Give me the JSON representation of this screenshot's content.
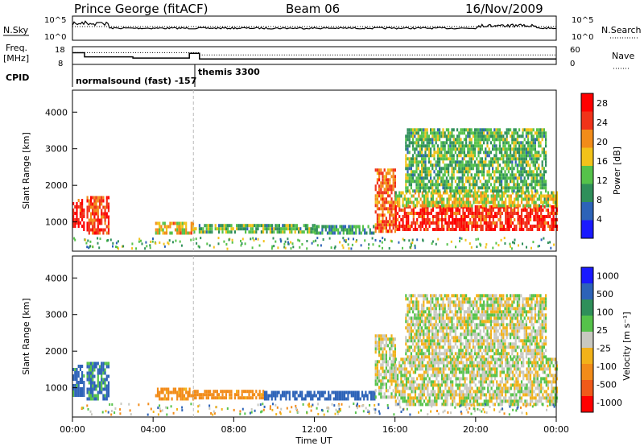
{
  "header": {
    "station": "Prince George (fitACF)",
    "beam": "Beam 06",
    "date": "16/Nov/2009"
  },
  "status_panel": {
    "left_label_top": "N.Sky",
    "left_label_freq_1": "Freq.",
    "left_label_freq_2": "[MHz]",
    "left_label_cpid": "CPID",
    "right_label_top": "N.Search",
    "right_label_mid": "Nave",
    "nsky_ticks": [
      "10^5",
      "10^0"
    ],
    "nsearch_ticks": [
      "10^5",
      "10^0"
    ],
    "freq_ticks": [
      18,
      8
    ],
    "nave_ticks": [
      60,
      0
    ],
    "cpid_labels": [
      "normalsound (fast) -157",
      "themis 3300"
    ],
    "freq_mhz": {
      "t": [
        0,
        0.6,
        0.6,
        3.0,
        3.0,
        5.8,
        5.8,
        6.3,
        6.3,
        24
      ],
      "v": [
        15.5,
        15.5,
        13.2,
        13.2,
        12.5,
        12.5,
        15.2,
        15.2,
        12.0,
        12.0
      ]
    },
    "nave_dotted_level": 32,
    "nave_dotted_level_early": 40
  },
  "chart_data": [
    {
      "type": "heatmap",
      "name": "power",
      "ylabel": "Slant Range [km]",
      "xlabel": "",
      "xlim": [
        0,
        24
      ],
      "ylim": [
        200,
        4600
      ],
      "yticks": [
        1000,
        2000,
        3000,
        4000
      ],
      "colorbar_label": "Power [dB]",
      "colorbar_ticks": [
        4,
        8,
        12,
        16,
        20,
        24,
        28
      ],
      "colorbar_range": [
        0,
        30
      ],
      "colors": [
        "#1a1aff",
        "#2d63b8",
        "#2f8f5a",
        "#55c24a",
        "#f2c21a",
        "#f28c1a",
        "#f0331a",
        "#ff0000"
      ],
      "regions": [
        {
          "t0": 0.0,
          "t1": 0.55,
          "r0": 750,
          "r1": 1600,
          "level": 26
        },
        {
          "t0": 0.7,
          "t1": 1.8,
          "r0": 650,
          "r1": 1650,
          "level": 24
        },
        {
          "t0": 4.1,
          "t1": 6.0,
          "r0": 650,
          "r1": 1000,
          "level": 18
        },
        {
          "t0": 6.0,
          "t1": 12.0,
          "r0": 680,
          "r1": 900,
          "level": 12
        },
        {
          "t0": 12.0,
          "t1": 15.0,
          "r0": 650,
          "r1": 870,
          "level": 10
        },
        {
          "t0": 15.0,
          "t1": 16.0,
          "r0": 700,
          "r1": 2400,
          "level": 22
        },
        {
          "t0": 16.0,
          "t1": 24.0,
          "r0": 750,
          "r1": 1400,
          "level": 26
        },
        {
          "t0": 16.0,
          "t1": 24.0,
          "r0": 1400,
          "r1": 1800,
          "level": 16
        },
        {
          "t0": 16.5,
          "t1": 23.5,
          "r0": 1800,
          "r1": 3500,
          "level": 12
        }
      ]
    },
    {
      "type": "heatmap",
      "name": "velocity",
      "ylabel": "Slant Range [km]",
      "xlabel": "Time UT",
      "xlim": [
        0,
        24
      ],
      "ylim": [
        200,
        4600
      ],
      "yticks": [
        1000,
        2000,
        3000,
        4000
      ],
      "xticks": [
        "00:00",
        "04:00",
        "08:00",
        "12:00",
        "16:00",
        "20:00",
        "00:00"
      ],
      "colorbar_label": "Velocity [m s⁻¹]",
      "colorbar_ticks": [
        1000,
        500,
        100,
        25,
        -25,
        -100,
        -500,
        -1000
      ],
      "colors": [
        "#1a1aff",
        "#2d63b8",
        "#2f8f5a",
        "#55c24a",
        "#c8c8c0",
        "#f2b21a",
        "#f28c1a",
        "#f05a1a",
        "#ff0000"
      ],
      "regions": [
        {
          "t0": 0.0,
          "t1": 0.55,
          "r0": 750,
          "r1": 1600,
          "vel": 150
        },
        {
          "t0": 0.7,
          "t1": 1.8,
          "r0": 650,
          "r1": 1650,
          "vel": 120
        },
        {
          "t0": 4.1,
          "t1": 6.0,
          "r0": 650,
          "r1": 1000,
          "vel": -150
        },
        {
          "t0": 6.0,
          "t1": 9.5,
          "r0": 680,
          "r1": 900,
          "vel": -150
        },
        {
          "t0": 9.5,
          "t1": 15.0,
          "r0": 650,
          "r1": 870,
          "vel": 200
        },
        {
          "t0": 15.0,
          "t1": 16.0,
          "r0": 700,
          "r1": 2400,
          "vel": 0
        },
        {
          "t0": 16.0,
          "t1": 24.0,
          "r0": 500,
          "r1": 1800,
          "vel": 0
        },
        {
          "t0": 16.5,
          "t1": 23.5,
          "r0": 1800,
          "r1": 3500,
          "vel": 0
        }
      ]
    }
  ],
  "time_marker_ut": 6.0
}
